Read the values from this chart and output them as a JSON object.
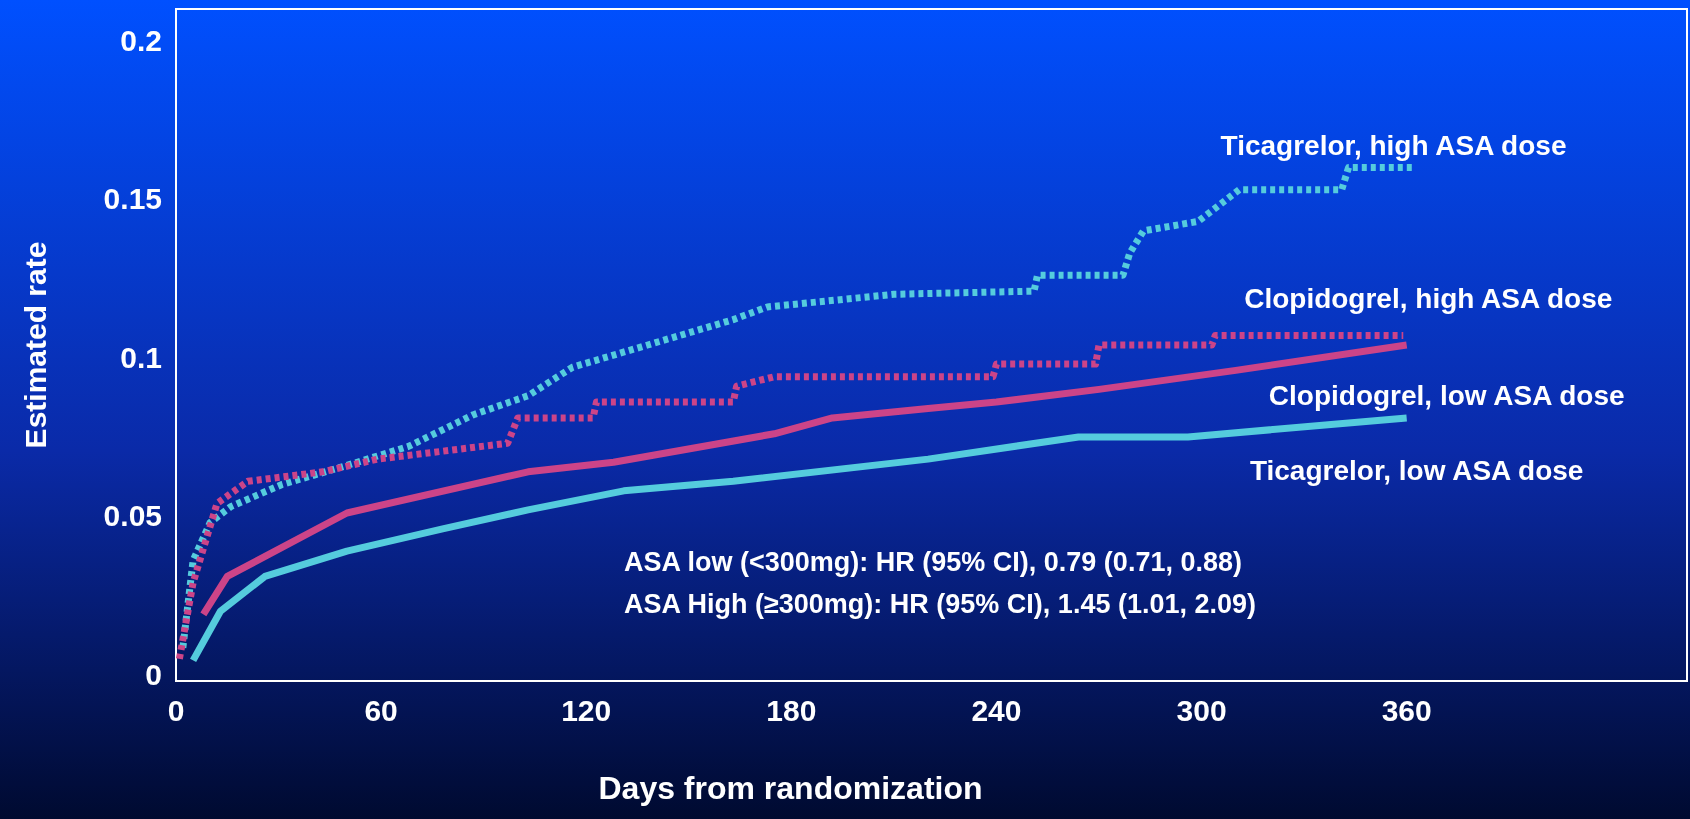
{
  "chart_data": {
    "type": "line",
    "xlabel": "Days from randomization",
    "ylabel": "Estimated rate",
    "xlim": [
      0,
      442
    ],
    "ylim": [
      -0.002,
      0.21
    ],
    "xticks": [
      0,
      60,
      120,
      180,
      240,
      300,
      360
    ],
    "yticks": [
      0,
      0.05,
      0.1,
      0.15,
      0.2
    ],
    "grid": false,
    "series": [
      {
        "name": "Ticagrelor, high ASA dose",
        "color": "#55ccdd",
        "line_style": "dotted",
        "x": [
          2,
          5,
          10,
          16,
          31,
          50,
          68,
          87,
          103,
          116,
          138,
          163,
          173,
          210,
          251,
          252,
          277,
          279,
          283,
          299,
          311,
          341,
          343,
          362
        ],
        "values": [
          0.0085,
          0.036,
          0.048,
          0.053,
          0.06,
          0.066,
          0.072,
          0.082,
          0.088,
          0.097,
          0.104,
          0.112,
          0.116,
          0.12,
          0.121,
          0.126,
          0.126,
          0.133,
          0.14,
          0.143,
          0.153,
          0.153,
          0.16,
          0.16
        ]
      },
      {
        "name": "Clopidogrel, high ASA dose",
        "color": "#cc4488",
        "line_style": "dotted",
        "x": [
          1,
          5,
          12,
          21,
          43,
          59,
          97,
          100,
          122,
          123,
          163,
          164,
          175,
          239,
          240,
          269,
          270,
          303,
          304,
          359
        ],
        "values": [
          0.005,
          0.029,
          0.054,
          0.061,
          0.064,
          0.068,
          0.073,
          0.081,
          0.081,
          0.086,
          0.086,
          0.091,
          0.094,
          0.094,
          0.098,
          0.098,
          0.104,
          0.104,
          0.107,
          0.107
        ]
      },
      {
        "name": "Clopidogrel, low ASA dose",
        "color": "#cc4488",
        "line_style": "solid",
        "x": [
          8,
          15,
          50,
          103,
          128,
          175,
          192,
          220,
          240,
          270,
          310,
          360
        ],
        "values": [
          0.019,
          0.031,
          0.051,
          0.064,
          0.067,
          0.076,
          0.081,
          0.084,
          0.086,
          0.09,
          0.096,
          0.104
        ]
      },
      {
        "name": "Ticagrelor, low ASA dose",
        "color": "#55ccdd",
        "line_style": "solid",
        "x": [
          5,
          13,
          26,
          50,
          78,
          103,
          131,
          163,
          220,
          264,
          296,
          360
        ],
        "values": [
          0.0045,
          0.02,
          0.031,
          0.039,
          0.046,
          0.052,
          0.058,
          0.061,
          0.068,
          0.075,
          0.075,
          0.081
        ]
      }
    ],
    "annotations": [
      "ASA low (<300mg): HR (95% CI), 0.79 (0.71, 0.88)",
      "ASA High (≥300mg): HR (95% CI), 1.45 (1.01, 2.09)"
    ]
  }
}
